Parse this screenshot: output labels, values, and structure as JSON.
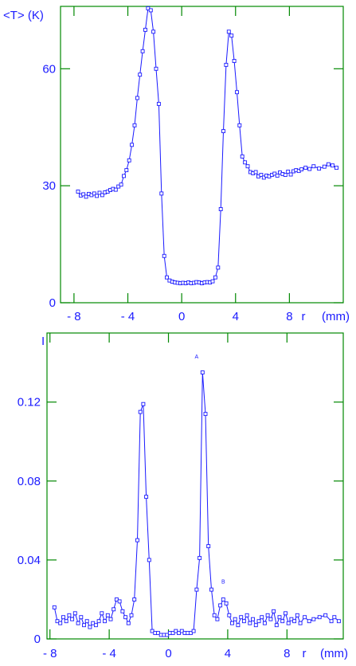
{
  "colors": {
    "axis": "#008800",
    "series": "#1a1aff",
    "label": "#1a1aff"
  },
  "chart_data": [
    {
      "type": "line",
      "ylabel": "<T> (K)",
      "xlabel": "r   (mm)",
      "xlabel_tokens": [
        "r",
        "(mm)"
      ],
      "xlim": [
        -9,
        12
      ],
      "ylim": [
        0,
        76
      ],
      "xticks": [
        "- 8",
        "- 4",
        "0",
        "4",
        "8"
      ],
      "xtick_values": [
        -8,
        -4,
        0,
        4,
        8
      ],
      "yticks": [
        "0",
        "30",
        "60"
      ],
      "ytick_values": [
        0,
        30,
        60
      ],
      "series": [
        {
          "x": [
            -7.7,
            -7.5,
            -7.3,
            -7.1,
            -6.9,
            -6.7,
            -6.5,
            -6.3,
            -6.1,
            -5.9,
            -5.7,
            -5.5,
            -5.3,
            -5.1,
            -4.9,
            -4.7,
            -4.5,
            -4.3,
            -4.1,
            -3.9,
            -3.7,
            -3.5,
            -3.3,
            -3.1,
            -2.9,
            -2.7,
            -2.5,
            -2.3,
            -2.1,
            -1.9,
            -1.7,
            -1.5,
            -1.3,
            -1.1,
            -0.9,
            -0.7,
            -0.5,
            -0.3,
            -0.1,
            0.1,
            0.3,
            0.5,
            0.7,
            0.9,
            1.1,
            1.3,
            1.5,
            1.7,
            1.9,
            2.1,
            2.3,
            2.5,
            2.7,
            2.9,
            3.1,
            3.3,
            3.5,
            3.7,
            3.9,
            4.1,
            4.3,
            4.5,
            4.7,
            4.9,
            5.1,
            5.3,
            5.5,
            5.7,
            5.9,
            6.1,
            6.3,
            6.5,
            6.7,
            6.9,
            7.1,
            7.3,
            7.5,
            7.7,
            7.9,
            8.1,
            8.3,
            8.5,
            8.7,
            8.9,
            9.2,
            9.5,
            9.8,
            10.2,
            10.6,
            10.9,
            11.2,
            11.5
          ],
          "y": [
            28.5,
            27.5,
            27.8,
            27.2,
            27.9,
            27.6,
            28.0,
            27.4,
            28.2,
            27.6,
            28.3,
            28.5,
            28.9,
            29.2,
            29.0,
            29.8,
            30.3,
            32.5,
            34.0,
            36.5,
            40.5,
            45.5,
            52.5,
            58.5,
            64.5,
            70.0,
            75.5,
            75.0,
            69.5,
            60.0,
            51.0,
            28.0,
            12.0,
            6.5,
            5.7,
            5.4,
            5.2,
            5.1,
            5.0,
            5.1,
            5.0,
            5.2,
            5.0,
            5.1,
            5.3,
            5.2,
            5.0,
            5.2,
            5.3,
            5.2,
            5.5,
            6.5,
            9.0,
            24.0,
            44.0,
            61.0,
            69.5,
            68.5,
            62.0,
            54.0,
            45.5,
            37.5,
            36.0,
            35.0,
            33.5,
            33.2,
            33.5,
            32.4,
            32.8,
            32.1,
            32.6,
            32.4,
            32.8,
            33.1,
            32.6,
            33.4,
            33.0,
            32.8,
            33.6,
            32.9,
            33.7,
            34.0,
            33.8,
            34.2,
            34.6,
            34.3,
            35.0,
            34.4,
            34.9,
            35.5,
            35.2,
            34.6
          ]
        }
      ]
    },
    {
      "type": "line",
      "ylabel": "I",
      "xlabel": "r   (mm)",
      "xlabel_tokens": [
        "r",
        "(mm)"
      ],
      "xlim": [
        -8.2,
        11.8
      ],
      "ylim": [
        0,
        0.155
      ],
      "xticks": [
        "- 8",
        "- 4",
        "0",
        "4",
        "8"
      ],
      "xtick_values": [
        -8,
        -4,
        0,
        4,
        8
      ],
      "yticks": [
        "0",
        "0.04",
        "0.08",
        "0.12"
      ],
      "ytick_values": [
        0,
        0.04,
        0.08,
        0.12
      ],
      "annotations": [
        {
          "text": "A",
          "x": 1.9,
          "y": 0.142
        },
        {
          "text": "B",
          "x": 3.7,
          "y": 0.028
        }
      ],
      "series": [
        {
          "x": [
            -7.7,
            -7.5,
            -7.3,
            -7.1,
            -6.9,
            -6.7,
            -6.5,
            -6.3,
            -6.1,
            -5.9,
            -5.7,
            -5.5,
            -5.3,
            -5.1,
            -4.9,
            -4.7,
            -4.5,
            -4.3,
            -4.1,
            -3.9,
            -3.7,
            -3.5,
            -3.3,
            -3.1,
            -2.9,
            -2.7,
            -2.5,
            -2.3,
            -2.1,
            -1.9,
            -1.7,
            -1.5,
            -1.3,
            -1.1,
            -0.9,
            -0.7,
            -0.5,
            -0.3,
            -0.1,
            0.1,
            0.3,
            0.5,
            0.7,
            0.9,
            1.1,
            1.3,
            1.5,
            1.7,
            1.9,
            2.1,
            2.3,
            2.5,
            2.7,
            2.9,
            3.1,
            3.3,
            3.5,
            3.7,
            3.9,
            4.1,
            4.3,
            4.5,
            4.7,
            4.9,
            5.1,
            5.3,
            5.5,
            5.7,
            5.9,
            6.1,
            6.3,
            6.5,
            6.7,
            6.9,
            7.1,
            7.3,
            7.5,
            7.7,
            7.9,
            8.1,
            8.3,
            8.5,
            8.7,
            8.9,
            9.2,
            9.5,
            9.8,
            10.2,
            10.6,
            11.0,
            11.2,
            11.5
          ],
          "y": [
            0.016,
            0.009,
            0.008,
            0.011,
            0.009,
            0.012,
            0.01,
            0.013,
            0.008,
            0.011,
            0.007,
            0.009,
            0.006,
            0.008,
            0.007,
            0.009,
            0.013,
            0.009,
            0.012,
            0.01,
            0.015,
            0.02,
            0.019,
            0.014,
            0.011,
            0.008,
            0.012,
            0.02,
            0.05,
            0.115,
            0.119,
            0.072,
            0.04,
            0.004,
            0.003,
            0.003,
            0.002,
            0.002,
            0.002,
            0.003,
            0.003,
            0.004,
            0.003,
            0.004,
            0.003,
            0.003,
            0.003,
            0.004,
            0.025,
            0.041,
            0.135,
            0.114,
            0.047,
            0.025,
            0.012,
            0.01,
            0.017,
            0.02,
            0.018,
            0.012,
            0.008,
            0.01,
            0.007,
            0.011,
            0.009,
            0.012,
            0.008,
            0.01,
            0.007,
            0.009,
            0.011,
            0.008,
            0.012,
            0.01,
            0.014,
            0.007,
            0.011,
            0.009,
            0.013,
            0.008,
            0.01,
            0.009,
            0.012,
            0.008,
            0.011,
            0.009,
            0.01,
            0.011,
            0.012,
            0.009,
            0.011,
            0.009
          ]
        }
      ]
    }
  ]
}
